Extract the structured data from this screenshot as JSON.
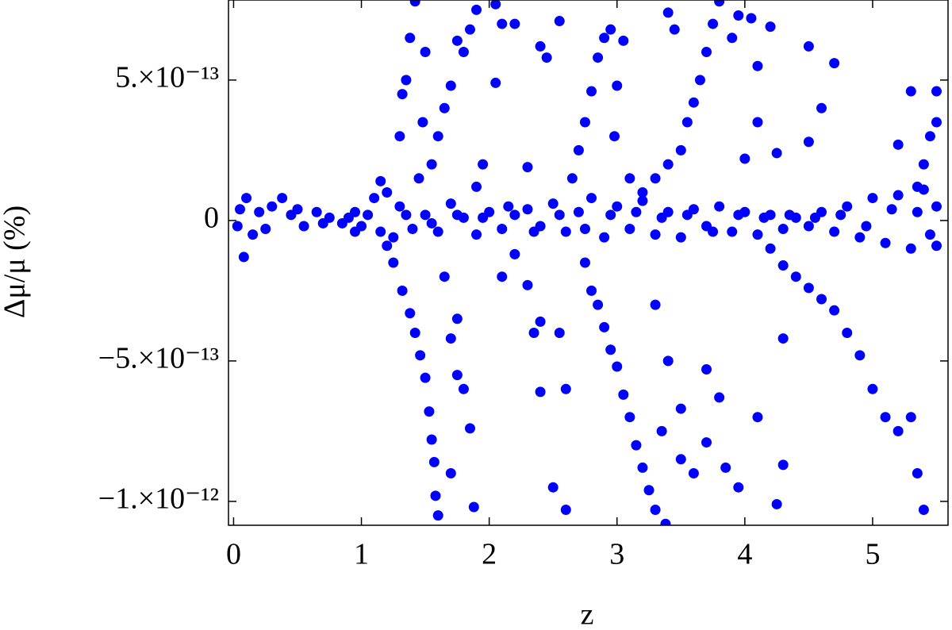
{
  "chart_data": {
    "type": "scatter",
    "x_label": "z",
    "y_label": "Δμ/μ (%)",
    "color": "#0000ff",
    "xlim": [
      -0.04,
      5.59
    ],
    "ylim": [
      -1.085e-12,
      7.85e-13
    ],
    "xticks": [
      0,
      1,
      2,
      3,
      4,
      5
    ],
    "yticks": [
      {
        "value": -1e-12,
        "label": "−1.×10⁻¹²"
      },
      {
        "value": -5e-13,
        "label": "−5.×10⁻¹³"
      },
      0,
      {
        "value": 5e-13,
        "label": "5.×10⁻¹³"
      }
    ],
    "x": [
      0.05,
      0.08,
      0.1,
      0.15,
      0.2,
      0.25,
      0.3,
      0.38,
      0.45,
      0.55,
      0.65,
      0.75,
      0.85,
      0.95,
      1.05,
      1.15,
      1.2,
      1.25,
      1.3,
      1.4,
      1.5,
      1.6,
      1.7,
      1.8,
      1.9,
      2.0,
      2.1,
      2.2,
      2.3,
      2.4,
      2.5,
      2.6,
      2.7,
      2.8,
      2.9,
      3.0,
      3.1,
      3.2,
      3.3,
      3.4,
      3.5,
      3.6,
      3.7,
      3.8,
      3.9,
      4.0,
      4.1,
      4.2,
      4.3,
      4.4,
      4.5,
      4.6,
      4.7,
      4.8,
      4.9,
      5.0,
      5.1,
      5.2,
      5.3,
      5.4,
      5.5,
      5.5,
      0.03,
      0.5,
      0.7,
      0.9,
      1.0,
      1.35,
      1.55,
      1.75,
      1.95,
      2.15,
      2.35,
      2.55,
      2.75,
      2.95,
      3.15,
      3.35,
      3.55,
      3.75,
      3.95,
      4.15,
      4.35,
      4.55,
      4.75,
      4.95,
      5.15,
      5.35,
      5.45,
      1.25,
      1.32,
      1.38,
      1.42,
      1.46,
      1.5,
      1.53,
      1.55,
      1.57,
      1.58,
      1.6,
      1.7,
      1.75,
      1.75,
      1.8,
      1.85,
      1.88,
      1.65,
      1.7,
      1.3,
      1.32,
      1.35,
      1.38,
      1.42,
      1.45,
      1.48,
      1.5,
      1.55,
      1.6,
      1.65,
      1.7,
      1.75,
      1.8,
      1.85,
      1.9,
      2.05,
      2.1,
      2.05,
      1.95,
      1.9,
      2.1,
      2.2,
      2.3,
      2.35,
      2.4,
      2.4,
      2.5,
      2.55,
      2.6,
      2.6,
      2.2,
      2.4,
      2.45,
      2.55,
      2.3,
      2.75,
      2.8,
      2.85,
      2.9,
      2.95,
      3.0,
      3.05,
      3.1,
      3.15,
      3.2,
      3.25,
      3.3,
      3.38,
      3.3,
      3.4,
      3.5,
      3.5,
      3.35,
      3.6,
      3.7,
      3.8,
      3.85,
      3.7,
      2.65,
      2.7,
      2.75,
      2.8,
      2.85,
      2.9,
      2.95,
      3.0,
      3.05,
      2.98,
      3.1,
      3.2,
      3.3,
      3.4,
      3.5,
      3.55,
      3.6,
      3.65,
      3.7,
      3.75,
      3.8,
      3.9,
      3.95,
      4.05,
      4.2,
      4.1,
      3.45,
      3.4,
      4.2,
      4.3,
      4.4,
      4.5,
      4.6,
      4.7,
      4.8,
      4.9,
      5.0,
      5.1,
      5.2,
      5.3,
      5.35,
      5.4,
      4.3,
      4.3,
      4.25,
      4.1,
      3.95,
      4.5,
      4.6,
      4.7,
      4.5,
      5.2,
      5.3,
      5.4,
      5.45,
      5.5,
      5.5,
      5.35,
      4.25,
      4.1,
      4.0,
      1.1,
      0.95,
      1.15,
      1.2
    ],
    "values": [
      4e-14,
      -1.3e-13,
      8e-14,
      -5e-14,
      3e-14,
      -3e-14,
      5e-14,
      8e-14,
      2e-14,
      -2e-14,
      3e-14,
      1e-14,
      -1e-14,
      3e-14,
      2e-14,
      -4e-14,
      1e-13,
      -6e-14,
      5e-14,
      -3e-14,
      2e-14,
      -4e-14,
      6e-14,
      1e-14,
      -5e-14,
      3e-14,
      -3e-14,
      2e-14,
      4e-14,
      -2e-14,
      6e-14,
      -4e-14,
      3e-14,
      8e-14,
      -6e-14,
      5e-14,
      -3e-14,
      7e-14,
      -5e-14,
      3e-14,
      -6e-14,
      4e-14,
      -2e-14,
      5e-14,
      -4e-14,
      3e-14,
      -5e-14,
      2e-14,
      -3e-14,
      1e-14,
      -2e-14,
      3e-14,
      -4e-14,
      5e-14,
      -6e-14,
      8e-14,
      -8e-14,
      9e-14,
      -1e-13,
      1.1e-13,
      -9e-14,
      5e-14,
      -2e-14,
      4e-14,
      -1e-14,
      1e-14,
      -2e-14,
      2e-14,
      -1e-14,
      2e-14,
      1e-14,
      5e-14,
      -4e-14,
      2e-14,
      -3e-14,
      2e-14,
      3e-14,
      1e-14,
      2e-14,
      -4e-14,
      2e-14,
      1e-14,
      2e-14,
      1e-14,
      2e-14,
      -2e-14,
      4e-14,
      3e-14,
      -5e-14,
      -1.5e-13,
      -2.5e-13,
      -3.3e-13,
      -4e-13,
      -4.8e-13,
      -5.6e-13,
      -6.8e-13,
      -7.8e-13,
      -8.6e-13,
      -9.8e-13,
      -1.05e-12,
      -9e-13,
      -5.5e-13,
      -3.5e-13,
      -6e-13,
      -7.4e-13,
      -1.02e-12,
      -2e-13,
      -4.2e-13,
      3e-13,
      4.5e-13,
      5e-13,
      6.5e-13,
      7.8e-13,
      1.5e-13,
      3.5e-13,
      6e-13,
      2e-13,
      3e-13,
      4e-13,
      4.8e-13,
      6.4e-13,
      6e-13,
      6.8e-13,
      7.5e-13,
      7.7e-13,
      7e-13,
      4.9e-13,
      2e-13,
      1.2e-13,
      -2e-13,
      -1.2e-13,
      -2.3e-13,
      -4e-13,
      -3.6e-13,
      -6.1e-13,
      -9.5e-13,
      -4e-13,
      -1.03e-12,
      -6e-13,
      7e-13,
      6.2e-13,
      5.8e-13,
      7.1e-13,
      1.9e-13,
      -1.5e-13,
      -2.5e-13,
      -3e-13,
      -3.8e-13,
      -4.6e-13,
      -5.2e-13,
      -6.2e-13,
      -7e-13,
      -8e-13,
      -8.8e-13,
      -9.6e-13,
      -1.03e-12,
      -1.08e-12,
      -3e-13,
      -5e-13,
      -6.7e-13,
      -8.5e-13,
      -7.5e-13,
      -9e-13,
      -7.9e-13,
      -6.3e-13,
      -8.8e-13,
      -5.3e-13,
      1.5e-13,
      2.5e-13,
      3.5e-13,
      4.6e-13,
      5.8e-13,
      6.5e-13,
      6.8e-13,
      4.8e-13,
      6.4e-13,
      3e-13,
      1.5e-13,
      1e-13,
      1.5e-13,
      2e-13,
      2.5e-13,
      3.5e-13,
      4.2e-13,
      5e-13,
      6e-13,
      7e-13,
      7.8e-13,
      6.5e-13,
      7.3e-13,
      7.2e-13,
      6.9e-13,
      5.5e-13,
      6.8e-13,
      7.4e-13,
      -1e-13,
      -1.6e-13,
      -2e-13,
      -2.4e-13,
      -2.8e-13,
      -3.2e-13,
      -4e-13,
      -4.8e-13,
      -6e-13,
      -7e-13,
      -7.5e-13,
      -7e-13,
      -9e-13,
      -1.03e-12,
      -4.2e-13,
      -8.7e-13,
      -1.01e-12,
      -7e-13,
      -9.5e-13,
      6.2e-13,
      4e-13,
      5.6e-13,
      2.8e-13,
      2.7e-13,
      4.6e-13,
      2e-13,
      3e-13,
      3.5e-13,
      4.6e-13,
      1.2e-13,
      2.4e-13,
      3.5e-13,
      2.2e-13,
      8e-14,
      -4e-14,
      1.4e-13,
      -9e-14
    ]
  }
}
